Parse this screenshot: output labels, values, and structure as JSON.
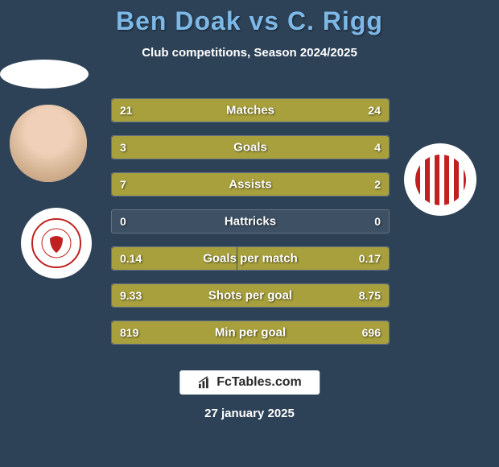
{
  "header": {
    "title": "Ben Doak vs C. Rigg",
    "subtitle": "Club competitions, Season 2024/2025",
    "title_color": "#7db9e8"
  },
  "background_color": "#2d4257",
  "bar_color": "#a8a03c",
  "stats": [
    {
      "label": "Matches",
      "left_value": "21",
      "right_value": "24",
      "left_pct": 46.7,
      "right_pct": 53.3
    },
    {
      "label": "Goals",
      "left_value": "3",
      "right_value": "4",
      "left_pct": 42.9,
      "right_pct": 57.1
    },
    {
      "label": "Assists",
      "left_value": "7",
      "right_value": "2",
      "left_pct": 77.8,
      "right_pct": 22.2
    },
    {
      "label": "Hattricks",
      "left_value": "0",
      "right_value": "0",
      "left_pct": 0,
      "right_pct": 0
    },
    {
      "label": "Goals per match",
      "left_value": "0.14",
      "right_value": "0.17",
      "left_pct": 45.2,
      "right_pct": 54.8
    },
    {
      "label": "Shots per goal",
      "left_value": "9.33",
      "right_value": "8.75",
      "left_pct": 51.6,
      "right_pct": 48.4
    },
    {
      "label": "Min per goal",
      "left_value": "819",
      "right_value": "696",
      "left_pct": 54.1,
      "right_pct": 45.9
    }
  ],
  "footer": {
    "logo_text": "FcTables.com",
    "date": "27 january 2025"
  },
  "players": {
    "left": {
      "name": "Ben Doak",
      "club": "Middlesbrough"
    },
    "right": {
      "name": "C. Rigg",
      "club": "Sunderland"
    }
  }
}
